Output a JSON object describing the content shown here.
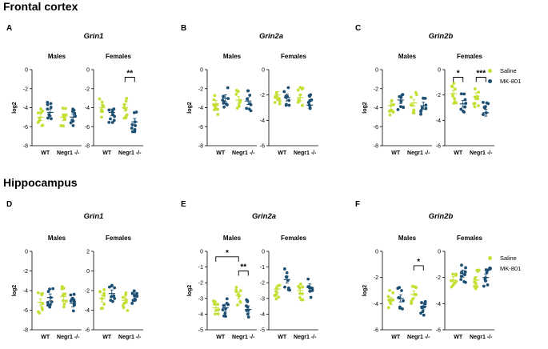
{
  "sections": [
    "Frontal cortex",
    "Hippocampus"
  ],
  "legend": [
    {
      "label": "Saline",
      "color": "#c6de35"
    },
    {
      "label": "MK-801",
      "color": "#1d4f73"
    }
  ],
  "chart_data": [
    {
      "type": "scatter",
      "panel": "A",
      "gene": "Grin1",
      "region": "Frontal cortex",
      "sex": "Males",
      "ylabel": "log2",
      "ylim": [
        -8,
        0
      ],
      "yticks": [
        "0",
        "-2",
        "-4",
        "-6",
        "-8"
      ],
      "categories": [
        "WT",
        "Negr1 -/-"
      ],
      "series": [
        {
          "name": "Saline",
          "means": [
            -5.0,
            -5.0
          ]
        },
        {
          "name": "MK-801",
          "means": [
            -4.5,
            -5.0
          ]
        }
      ],
      "significance": []
    },
    {
      "type": "scatter",
      "panel": "A",
      "gene": "Grin1",
      "region": "Frontal cortex",
      "sex": "Females",
      "ylabel": "",
      "ylim": [
        -8,
        0
      ],
      "yticks": [
        "0",
        "-2",
        "-4",
        "-6",
        "-8"
      ],
      "categories": [
        "WT",
        "Negr1 -/-"
      ],
      "series": [
        {
          "name": "Saline",
          "means": [
            -4.0,
            -4.0
          ]
        },
        {
          "name": "MK-801",
          "means": [
            -4.5,
            -5.5
          ]
        }
      ],
      "significance": [
        {
          "label": "**",
          "from": [
            1,
            "Saline"
          ],
          "to": [
            1,
            "MK-801"
          ],
          "y": -0.8
        }
      ]
    },
    {
      "type": "scatter",
      "panel": "B",
      "gene": "Grin2a",
      "region": "Frontal cortex",
      "sex": "Males",
      "ylabel": "log2",
      "ylim": [
        -8,
        0
      ],
      "yticks": [
        "0",
        "-2",
        "-4",
        "-6",
        "-8"
      ],
      "categories": [
        "WT",
        "Negr1 -/-"
      ],
      "series": [
        {
          "name": "Saline",
          "means": [
            -3.6,
            -3.2
          ]
        },
        {
          "name": "MK-801",
          "means": [
            -3.0,
            -3.3
          ]
        }
      ],
      "significance": []
    },
    {
      "type": "scatter",
      "panel": "B",
      "gene": "Grin2a",
      "region": "Frontal cortex",
      "sex": "Females",
      "ylabel": "",
      "ylim": [
        -6,
        0
      ],
      "yticks": [
        "0",
        "-2",
        "-4",
        "-6"
      ],
      "categories": [
        "WT",
        "Negr1 -/-"
      ],
      "series": [
        {
          "name": "Saline",
          "means": [
            -2.0,
            -2.2
          ]
        },
        {
          "name": "MK-801",
          "means": [
            -2.2,
            -2.8
          ]
        }
      ],
      "significance": []
    },
    {
      "type": "scatter",
      "panel": "C",
      "gene": "Grin2b",
      "region": "Frontal cortex",
      "sex": "Males",
      "ylabel": "log2",
      "ylim": [
        -8,
        0
      ],
      "yticks": [
        "0",
        "-2",
        "-4",
        "-6",
        "-8"
      ],
      "categories": [
        "WT",
        "Negr1 -/-"
      ],
      "series": [
        {
          "name": "Saline",
          "means": [
            -3.8,
            -3.5
          ]
        },
        {
          "name": "MK-801",
          "means": [
            -3.2,
            -3.8
          ]
        }
      ],
      "significance": []
    },
    {
      "type": "scatter",
      "panel": "C",
      "gene": "Grin2b",
      "region": "Frontal cortex",
      "sex": "Females",
      "ylabel": "",
      "ylim": [
        -6,
        0
      ],
      "yticks": [
        "0",
        "-2",
        "-4",
        "-6"
      ],
      "categories": [
        "WT",
        "Negr1 -/-"
      ],
      "series": [
        {
          "name": "Saline",
          "means": [
            -1.9,
            -2.1
          ]
        },
        {
          "name": "MK-801",
          "means": [
            -2.7,
            -3.4
          ]
        }
      ],
      "significance": [
        {
          "label": "*",
          "from": [
            0,
            "Saline"
          ],
          "to": [
            0,
            "MK-801"
          ],
          "y": -0.6
        },
        {
          "label": "***",
          "from": [
            1,
            "Saline"
          ],
          "to": [
            1,
            "MK-801"
          ],
          "y": -0.6
        }
      ]
    },
    {
      "type": "scatter",
      "panel": "D",
      "gene": "Grin1",
      "region": "Hippocampus",
      "sex": "Males",
      "ylabel": "log2",
      "ylim": [
        -8,
        0
      ],
      "yticks": [
        "0",
        "-2",
        "-4",
        "-6",
        "-8"
      ],
      "categories": [
        "WT",
        "Negr1 -/-"
      ],
      "series": [
        {
          "name": "Saline",
          "means": [
            -5.2,
            -4.6
          ]
        },
        {
          "name": "MK-801",
          "means": [
            -4.7,
            -5.3
          ]
        }
      ],
      "significance": []
    },
    {
      "type": "scatter",
      "panel": "D",
      "gene": "Grin1",
      "region": "Hippocampus",
      "sex": "Females",
      "ylabel": "",
      "ylim": [
        -6,
        2
      ],
      "yticks": [
        "2",
        "0",
        "-2",
        "-4",
        "-6"
      ],
      "categories": [
        "WT",
        "Negr1 -/-"
      ],
      "series": [
        {
          "name": "Saline",
          "means": [
            -2.8,
            -3.0
          ]
        },
        {
          "name": "MK-801",
          "means": [
            -2.3,
            -2.4
          ]
        }
      ],
      "significance": []
    },
    {
      "type": "scatter",
      "panel": "E",
      "gene": "Grin2a",
      "region": "Hippocampus",
      "sex": "Males",
      "ylabel": "log2",
      "ylim": [
        -5,
        0
      ],
      "yticks": [
        "0",
        "-1",
        "-2",
        "-3",
        "-4",
        "-5"
      ],
      "categories": [
        "WT",
        "Negr1 -/-"
      ],
      "series": [
        {
          "name": "Saline",
          "means": [
            -3.6,
            -2.8
          ]
        },
        {
          "name": "MK-801",
          "means": [
            -3.6,
            -3.7
          ]
        }
      ],
      "significance": [
        {
          "label": "*",
          "from": [
            0,
            "Saline"
          ],
          "to": [
            1,
            "Saline"
          ],
          "y": -0.35
        },
        {
          "label": "**",
          "from": [
            1,
            "Saline"
          ],
          "to": [
            1,
            "MK-801"
          ],
          "y": -1.25
        }
      ]
    },
    {
      "type": "scatter",
      "panel": "E",
      "gene": "Grin2a",
      "region": "Hippocampus",
      "sex": "Females",
      "ylabel": "",
      "ylim": [
        -5,
        0
      ],
      "yticks": [
        "0",
        "-1",
        "-2",
        "-3",
        "-4",
        "-5"
      ],
      "categories": [
        "WT",
        "Negr1 -/-"
      ],
      "series": [
        {
          "name": "Saline",
          "means": [
            -2.4,
            -2.5
          ]
        },
        {
          "name": "MK-801",
          "means": [
            -1.8,
            -2.3
          ]
        }
      ],
      "significance": []
    },
    {
      "type": "scatter",
      "panel": "F",
      "gene": "Grin2b",
      "region": "Hippocampus",
      "sex": "Males",
      "ylabel": "log2",
      "ylim": [
        -6,
        0
      ],
      "yticks": [
        "0",
        "-2",
        "-4",
        "-6"
      ],
      "categories": [
        "WT",
        "Negr1 -/-"
      ],
      "series": [
        {
          "name": "Saline",
          "means": [
            -3.8,
            -3.3
          ]
        },
        {
          "name": "MK-801",
          "means": [
            -3.6,
            -4.2
          ]
        }
      ],
      "significance": [
        {
          "label": "*",
          "from": [
            1,
            "Saline"
          ],
          "to": [
            1,
            "MK-801"
          ],
          "y": -1.1
        }
      ]
    },
    {
      "type": "scatter",
      "panel": "F",
      "gene": "Grin2b",
      "region": "Hippocampus",
      "sex": "Females",
      "ylabel": "",
      "ylim": [
        -6,
        0
      ],
      "yticks": [
        "0",
        "-2",
        "-4",
        "-6"
      ],
      "categories": [
        "WT",
        "Negr1 -/-"
      ],
      "series": [
        {
          "name": "Saline",
          "means": [
            -2.2,
            -2.2
          ]
        },
        {
          "name": "MK-801",
          "means": [
            -1.7,
            -2.0
          ]
        }
      ],
      "significance": []
    }
  ]
}
